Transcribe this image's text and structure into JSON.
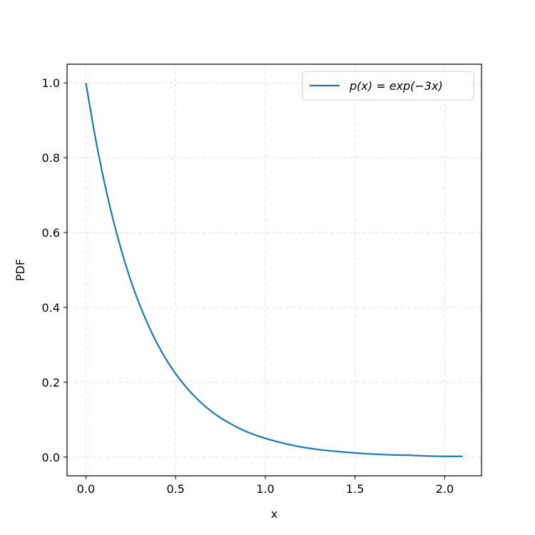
{
  "chart_data": {
    "type": "line",
    "title": "",
    "xlabel": "x",
    "ylabel": "PDF",
    "xlim": [
      -0.105,
      2.205
    ],
    "ylim": [
      -0.05,
      1.05
    ],
    "x_ticks": [
      0.0,
      0.5,
      1.0,
      1.5,
      2.0
    ],
    "x_tick_labels": [
      "0.0",
      "0.5",
      "1.0",
      "1.5",
      "2.0"
    ],
    "y_ticks": [
      0.0,
      0.2,
      0.4,
      0.6,
      0.8,
      1.0
    ],
    "y_tick_labels": [
      "0.0",
      "0.2",
      "0.4",
      "0.6",
      "0.8",
      "1.0"
    ],
    "grid": true,
    "grid_style": "dashed",
    "legend_position": "top-right",
    "series": [
      {
        "name": "p(x) = exp(−3x)",
        "color": "#1f77b4",
        "x": [
          0.0,
          0.05,
          0.1,
          0.15,
          0.2,
          0.25,
          0.3,
          0.35,
          0.4,
          0.45,
          0.5,
          0.55,
          0.6,
          0.65,
          0.7,
          0.75,
          0.8,
          0.85,
          0.9,
          0.95,
          1.0,
          1.1,
          1.2,
          1.3,
          1.4,
          1.5,
          1.6,
          1.7,
          1.8,
          1.9,
          2.0,
          2.1
        ],
        "y": [
          1.0,
          0.861,
          0.741,
          0.638,
          0.549,
          0.472,
          0.407,
          0.35,
          0.301,
          0.259,
          0.223,
          0.192,
          0.165,
          0.142,
          0.122,
          0.105,
          0.091,
          0.078,
          0.067,
          0.058,
          0.05,
          0.037,
          0.027,
          0.02,
          0.015,
          0.011,
          0.008,
          0.006,
          0.005,
          0.003,
          0.002,
          0.002
        ]
      }
    ]
  }
}
